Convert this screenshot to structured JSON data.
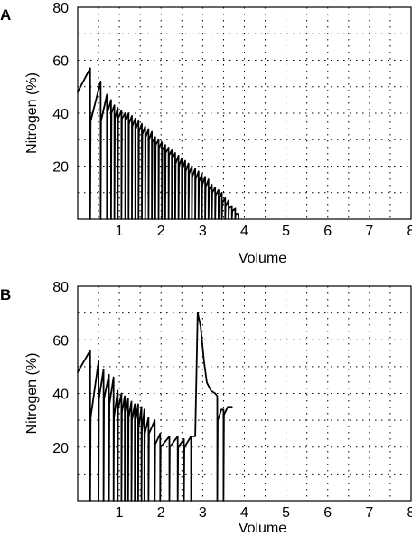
{
  "chart_data": [
    {
      "panel": "A",
      "type": "line",
      "xlabel": "Volume",
      "ylabel": "Nitrogen (%)",
      "xlim": [
        0,
        8
      ],
      "ylim": [
        0,
        80
      ],
      "xticks": [
        "1",
        "2",
        "3",
        "4",
        "5",
        "6",
        "7",
        "8"
      ],
      "yticks": [
        "20",
        "40",
        "60",
        "80"
      ],
      "grid": true,
      "series": [
        {
          "points": [
            [
              0,
              48
            ],
            [
              0.3,
              57
            ],
            [
              0.3,
              0
            ],
            [
              0.31,
              37
            ],
            [
              0.55,
              52
            ],
            [
              0.55,
              0
            ],
            [
              0.56,
              37
            ],
            [
              0.7,
              47
            ],
            [
              0.7,
              0
            ],
            [
              0.71,
              40
            ],
            [
              0.8,
              45
            ],
            [
              0.8,
              0
            ],
            [
              0.81,
              40
            ],
            [
              0.88,
              43
            ],
            [
              0.88,
              0
            ],
            [
              0.89,
              38
            ],
            [
              0.96,
              42
            ],
            [
              0.96,
              0
            ],
            [
              0.97,
              38
            ],
            [
              1.05,
              41
            ],
            [
              1.05,
              0
            ],
            [
              1.06,
              38
            ],
            [
              1.14,
              40
            ],
            [
              1.14,
              0
            ],
            [
              1.15,
              37
            ],
            [
              1.22,
              40
            ],
            [
              1.22,
              0
            ],
            [
              1.23,
              36
            ],
            [
              1.3,
              39
            ],
            [
              1.3,
              0
            ],
            [
              1.31,
              35
            ],
            [
              1.38,
              38
            ],
            [
              1.38,
              0
            ],
            [
              1.39,
              34
            ],
            [
              1.46,
              37
            ],
            [
              1.46,
              0
            ],
            [
              1.47,
              33
            ],
            [
              1.54,
              36
            ],
            [
              1.54,
              0
            ],
            [
              1.55,
              32
            ],
            [
              1.62,
              35
            ],
            [
              1.62,
              0
            ],
            [
              1.63,
              31
            ],
            [
              1.7,
              34
            ],
            [
              1.7,
              0
            ],
            [
              1.71,
              30
            ],
            [
              1.78,
              33
            ],
            [
              1.78,
              0
            ],
            [
              1.79,
              29
            ],
            [
              1.86,
              31
            ],
            [
              1.86,
              0
            ],
            [
              1.87,
              28
            ],
            [
              1.94,
              30
            ],
            [
              1.94,
              0
            ],
            [
              1.95,
              27
            ],
            [
              2.02,
              29
            ],
            [
              2.02,
              0
            ],
            [
              2.03,
              26
            ],
            [
              2.1,
              28
            ],
            [
              2.1,
              0
            ],
            [
              2.11,
              25
            ],
            [
              2.18,
              27
            ],
            [
              2.18,
              0
            ],
            [
              2.19,
              24
            ],
            [
              2.26,
              26
            ],
            [
              2.26,
              0
            ],
            [
              2.27,
              23
            ],
            [
              2.34,
              25
            ],
            [
              2.34,
              0
            ],
            [
              2.35,
              21
            ],
            [
              2.42,
              24
            ],
            [
              2.42,
              0
            ],
            [
              2.43,
              20
            ],
            [
              2.5,
              23
            ],
            [
              2.5,
              0
            ],
            [
              2.51,
              19
            ],
            [
              2.58,
              22
            ],
            [
              2.58,
              0
            ],
            [
              2.59,
              18
            ],
            [
              2.66,
              21
            ],
            [
              2.66,
              0
            ],
            [
              2.67,
              17
            ],
            [
              2.74,
              20
            ],
            [
              2.74,
              0
            ],
            [
              2.75,
              16
            ],
            [
              2.82,
              19
            ],
            [
              2.82,
              0
            ],
            [
              2.83,
              15
            ],
            [
              2.9,
              18
            ],
            [
              2.9,
              0
            ],
            [
              2.91,
              14
            ],
            [
              2.98,
              17
            ],
            [
              2.98,
              0
            ],
            [
              2.99,
              13
            ],
            [
              3.06,
              16
            ],
            [
              3.06,
              0
            ],
            [
              3.07,
              12
            ],
            [
              3.14,
              15
            ],
            [
              3.14,
              0
            ],
            [
              3.15,
              11
            ],
            [
              3.22,
              13
            ],
            [
              3.22,
              0
            ],
            [
              3.23,
              10
            ],
            [
              3.3,
              12
            ],
            [
              3.3,
              0
            ],
            [
              3.31,
              9
            ],
            [
              3.38,
              11
            ],
            [
              3.38,
              0
            ],
            [
              3.39,
              8
            ],
            [
              3.46,
              10
            ],
            [
              3.46,
              0
            ],
            [
              3.47,
              6
            ],
            [
              3.54,
              8
            ],
            [
              3.54,
              0
            ],
            [
              3.55,
              5
            ],
            [
              3.62,
              7
            ],
            [
              3.62,
              0
            ],
            [
              3.63,
              4
            ],
            [
              3.7,
              5
            ],
            [
              3.7,
              0
            ],
            [
              3.71,
              3
            ],
            [
              3.78,
              4
            ],
            [
              3.78,
              0
            ],
            [
              3.79,
              2
            ],
            [
              3.86,
              2
            ],
            [
              3.86,
              0
            ]
          ]
        }
      ]
    },
    {
      "panel": "B",
      "type": "line",
      "xlabel": "Volume",
      "ylabel": "Nitrogen (%)",
      "xlim": [
        0,
        8
      ],
      "ylim": [
        0,
        80
      ],
      "xticks": [
        "1",
        "2",
        "3",
        "4",
        "5",
        "6",
        "7",
        "8"
      ],
      "yticks": [
        "20",
        "40",
        "60",
        "80"
      ],
      "grid": true,
      "series": [
        {
          "points": [
            [
              0,
              48
            ],
            [
              0.3,
              56
            ],
            [
              0.3,
              0
            ],
            [
              0.31,
              31
            ],
            [
              0.5,
              52
            ],
            [
              0.5,
              0
            ],
            [
              0.51,
              38
            ],
            [
              0.62,
              49
            ],
            [
              0.62,
              0
            ],
            [
              0.63,
              38
            ],
            [
              0.75,
              47
            ],
            [
              0.75,
              0
            ],
            [
              0.76,
              36
            ],
            [
              0.86,
              46
            ],
            [
              0.86,
              0
            ],
            [
              0.87,
              31
            ],
            [
              0.96,
              41
            ],
            [
              0.96,
              0
            ],
            [
              0.97,
              34
            ],
            [
              1.05,
              40
            ],
            [
              1.05,
              0
            ],
            [
              1.06,
              33
            ],
            [
              1.13,
              39
            ],
            [
              1.13,
              0
            ],
            [
              1.14,
              32
            ],
            [
              1.21,
              38
            ],
            [
              1.21,
              0
            ],
            [
              1.22,
              31
            ],
            [
              1.29,
              37
            ],
            [
              1.29,
              0
            ],
            [
              1.3,
              30
            ],
            [
              1.37,
              36
            ],
            [
              1.37,
              0
            ],
            [
              1.38,
              29
            ],
            [
              1.45,
              36
            ],
            [
              1.45,
              0
            ],
            [
              1.46,
              27
            ],
            [
              1.53,
              35
            ],
            [
              1.53,
              0
            ],
            [
              1.54,
              26
            ],
            [
              1.6,
              34
            ],
            [
              1.6,
              0
            ],
            [
              1.61,
              25
            ],
            [
              1.7,
              31
            ],
            [
              1.7,
              0
            ],
            [
              1.71,
              25
            ],
            [
              1.85,
              30
            ],
            [
              1.85,
              0
            ],
            [
              1.86,
              21
            ],
            [
              1.98,
              25
            ],
            [
              1.98,
              0
            ],
            [
              1.99,
              20
            ],
            [
              2.2,
              24
            ],
            [
              2.2,
              0
            ],
            [
              2.21,
              20
            ],
            [
              2.4,
              24
            ],
            [
              2.4,
              0
            ],
            [
              2.41,
              20
            ],
            [
              2.55,
              23
            ],
            [
              2.55,
              0
            ],
            [
              2.56,
              20
            ],
            [
              2.72,
              24
            ],
            [
              2.72,
              0
            ],
            [
              2.73,
              24
            ],
            [
              2.82,
              24
            ],
            [
              2.88,
              70
            ],
            [
              2.95,
              65
            ],
            [
              3.03,
              52
            ],
            [
              3.1,
              44
            ],
            [
              3.2,
              41
            ],
            [
              3.3,
              40
            ],
            [
              3.35,
              39
            ],
            [
              3.35,
              0
            ],
            [
              3.36,
              30
            ],
            [
              3.45,
              34
            ],
            [
              3.5,
              34
            ],
            [
              3.5,
              0
            ],
            [
              3.51,
              32
            ],
            [
              3.6,
              35
            ],
            [
              3.7,
              35
            ]
          ]
        }
      ]
    }
  ]
}
